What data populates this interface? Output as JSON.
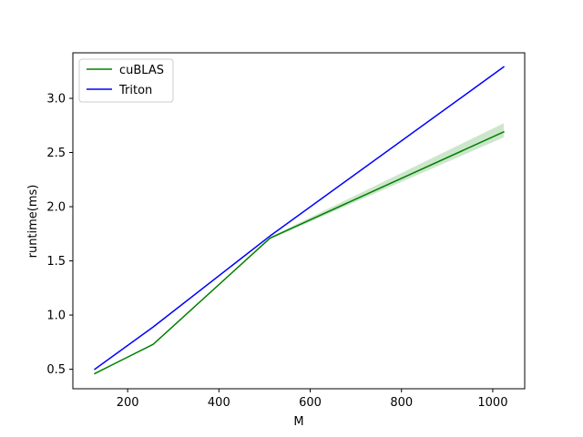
{
  "chart_data": {
    "type": "line",
    "xlabel": "M",
    "ylabel": "runtime(ms)",
    "xlim": [
      80,
      1070
    ],
    "ylim": [
      0.32,
      3.42
    ],
    "xticks": [
      200,
      400,
      600,
      800,
      1000
    ],
    "yticks": [
      0.5,
      1.0,
      1.5,
      2.0,
      2.5,
      3.0
    ],
    "xtick_labels": [
      "200",
      "400",
      "600",
      "800",
      "1000"
    ],
    "ytick_labels": [
      "0.5",
      "1.0",
      "1.5",
      "2.0",
      "2.5",
      "3.0"
    ],
    "legend_position": "top-left",
    "grid": false,
    "x": [
      128,
      256,
      512,
      1024
    ],
    "series": [
      {
        "name": "cuBLAS",
        "color": "#008000",
        "values": [
          0.46,
          0.73,
          1.71,
          2.69
        ],
        "band_low": [
          0.46,
          0.73,
          1.7,
          2.64
        ],
        "band_high": [
          0.46,
          0.73,
          1.72,
          2.77
        ]
      },
      {
        "name": "Triton",
        "color": "#0000ff",
        "values": [
          0.5,
          0.89,
          1.73,
          3.29
        ]
      }
    ]
  }
}
